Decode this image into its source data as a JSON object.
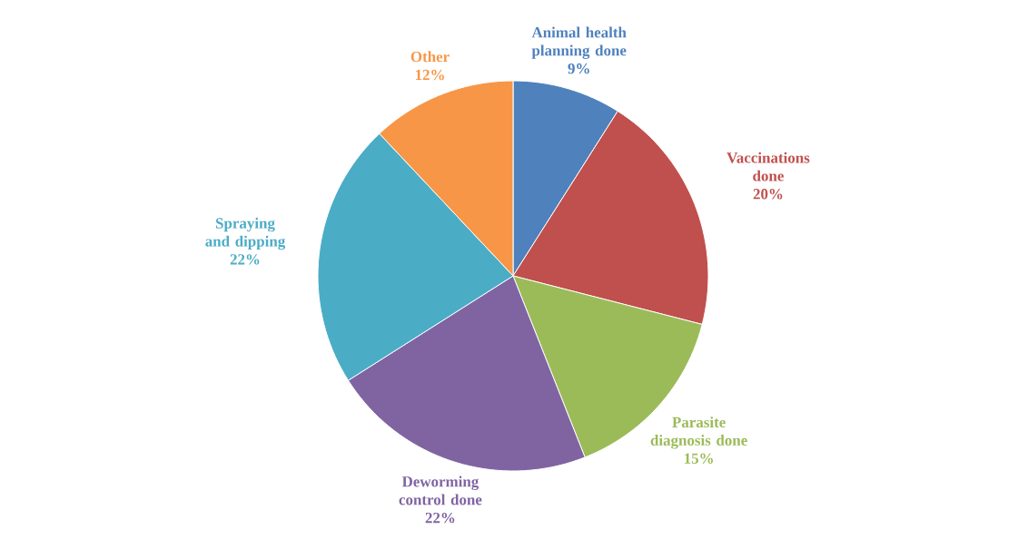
{
  "chart_data": {
    "type": "pie",
    "categories": [
      "Animal health planning done",
      "Vaccinations done",
      "Parasite diagnosis done",
      "Deworming control done",
      "Spraying and dipping",
      "Other"
    ],
    "values": [
      9,
      20,
      15,
      22,
      22,
      12
    ],
    "value_labels": [
      "9%",
      "20%",
      "15%",
      "22%",
      "22%",
      "12%"
    ],
    "colors": [
      "#4f81bd",
      "#c0504d",
      "#9bbb59",
      "#8064a2",
      "#4bacc6",
      "#f79646"
    ]
  }
}
